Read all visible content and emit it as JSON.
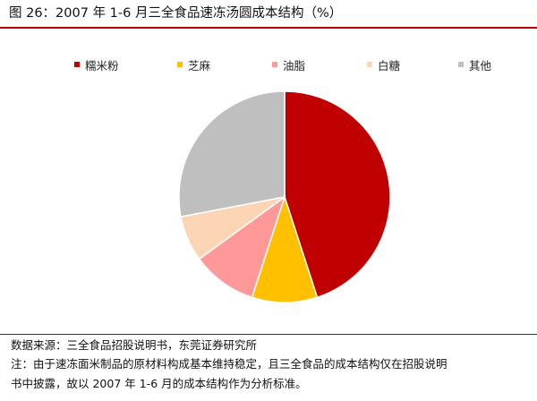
{
  "figure": {
    "title": "图 26：2007 年 1-6 月三全食品速冻汤圆成本结构（%）"
  },
  "chart_data": {
    "type": "pie",
    "title": "",
    "legend_position": "top",
    "slices": [
      {
        "name": "糯米粉",
        "value": 45,
        "color": "#c00000"
      },
      {
        "name": "芝麻",
        "value": 10,
        "color": "#ffc000"
      },
      {
        "name": "油脂",
        "value": 10,
        "color": "#ff9999"
      },
      {
        "name": "白糖",
        "value": 7,
        "color": "#fcd5b5"
      },
      {
        "name": "其他",
        "value": 28,
        "color": "#bfbfbf"
      }
    ]
  },
  "footer": {
    "source": "数据来源：三全食品招股说明书，东莞证券研究所",
    "note_line1": "注：由于速冻面米制品的原材料构成基本维持稳定，且三全食品的成本结构仅在招股说明",
    "note_line2": "书中披露，故以 2007 年 1-6 月的成本结构作为分析标准。"
  }
}
